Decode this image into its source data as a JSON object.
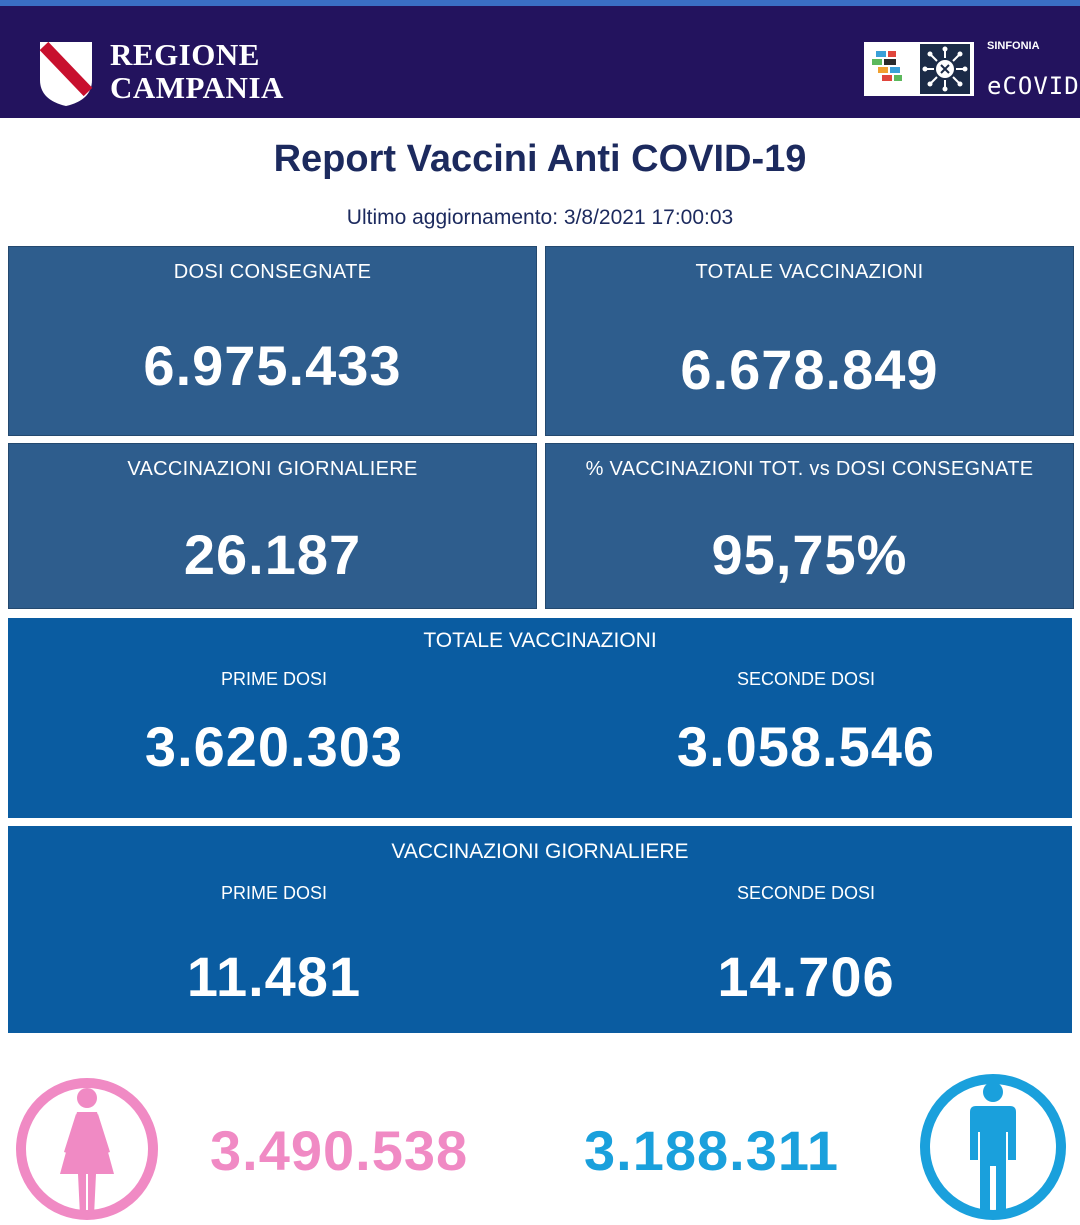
{
  "header": {
    "region_line1": "REGIONE",
    "region_line2": "CAMPANIA",
    "partner_small": "SINFONIA",
    "partner_name": "eCOVID"
  },
  "title": "Report Vaccini Anti COVID-19",
  "last_update": "Ultimo aggiornamento: 3/8/2021  17:00:03",
  "cards": {
    "dosi_consegnate": {
      "label": "DOSI  CONSEGNATE",
      "value": "6.975.433"
    },
    "totale_vaccinazioni": {
      "label": "TOTALE VACCINAZIONI",
      "value": "6.678.849"
    },
    "vaccinazioni_giornaliere": {
      "label": "VACCINAZIONI GIORNALIERE",
      "value": "26.187"
    },
    "percentuale": {
      "label": "% VACCINAZIONI TOT. vs DOSI CONSEGNATE",
      "value": "95,75%"
    }
  },
  "totale_panel": {
    "title": "TOTALE VACCINAZIONI",
    "prime_label": "PRIME DOSI",
    "prime_value": "3.620.303",
    "seconde_label": "SECONDE DOSI",
    "seconde_value": "3.058.546"
  },
  "giornaliere_panel": {
    "title": "VACCINAZIONI GIORNALIERE",
    "prime_label": "PRIME DOSI",
    "prime_value": "11.481",
    "seconde_label": "SECONDE DOSI",
    "seconde_value": "14.706"
  },
  "gender": {
    "female_value": "3.490.538",
    "male_value": "3.188.311",
    "female_color": "#f08ac4",
    "male_color": "#1aa0dc",
    "female_icon": "female-icon",
    "male_icon": "male-icon"
  },
  "colors": {
    "header_bg": "#23135e",
    "card_bg": "#2e5d8d",
    "panel_bg": "#0a5ca1",
    "title_text": "#1c2a5e"
  }
}
